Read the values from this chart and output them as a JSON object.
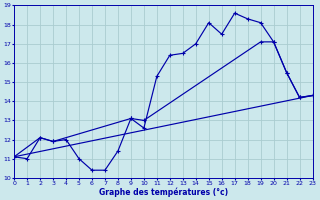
{
  "xlabel": "Graphe des températures (°c)",
  "bg_color": "#cce8ec",
  "grid_color": "#aaccd0",
  "line_color": "#0000aa",
  "xmin": 0,
  "xmax": 23,
  "ymin": 10,
  "ymax": 19,
  "yticks": [
    10,
    11,
    12,
    13,
    14,
    15,
    16,
    17,
    18,
    19
  ],
  "xticks": [
    0,
    1,
    2,
    3,
    4,
    5,
    6,
    7,
    8,
    9,
    10,
    11,
    12,
    13,
    14,
    15,
    16,
    17,
    18,
    19,
    20,
    21,
    22,
    23
  ],
  "line1_x": [
    0,
    1,
    2,
    3,
    4,
    5,
    6,
    7,
    8,
    9,
    10,
    11,
    12,
    13,
    14,
    15,
    16,
    17,
    18,
    19,
    20,
    21,
    22,
    23
  ],
  "line1_y": [
    11.1,
    11.0,
    12.1,
    11.9,
    12.0,
    11.0,
    10.4,
    10.4,
    11.4,
    13.1,
    12.6,
    15.3,
    16.4,
    16.5,
    17.0,
    18.1,
    17.5,
    18.6,
    18.3,
    18.1,
    17.1,
    15.5,
    14.2,
    14.3
  ],
  "line2_x": [
    0,
    2,
    3,
    9,
    10,
    19,
    20,
    21,
    22,
    23
  ],
  "line2_y": [
    11.1,
    12.1,
    11.9,
    13.1,
    13.0,
    17.1,
    17.1,
    15.5,
    14.2,
    14.3
  ],
  "line3_x": [
    0,
    23
  ],
  "line3_y": [
    11.1,
    14.3
  ]
}
